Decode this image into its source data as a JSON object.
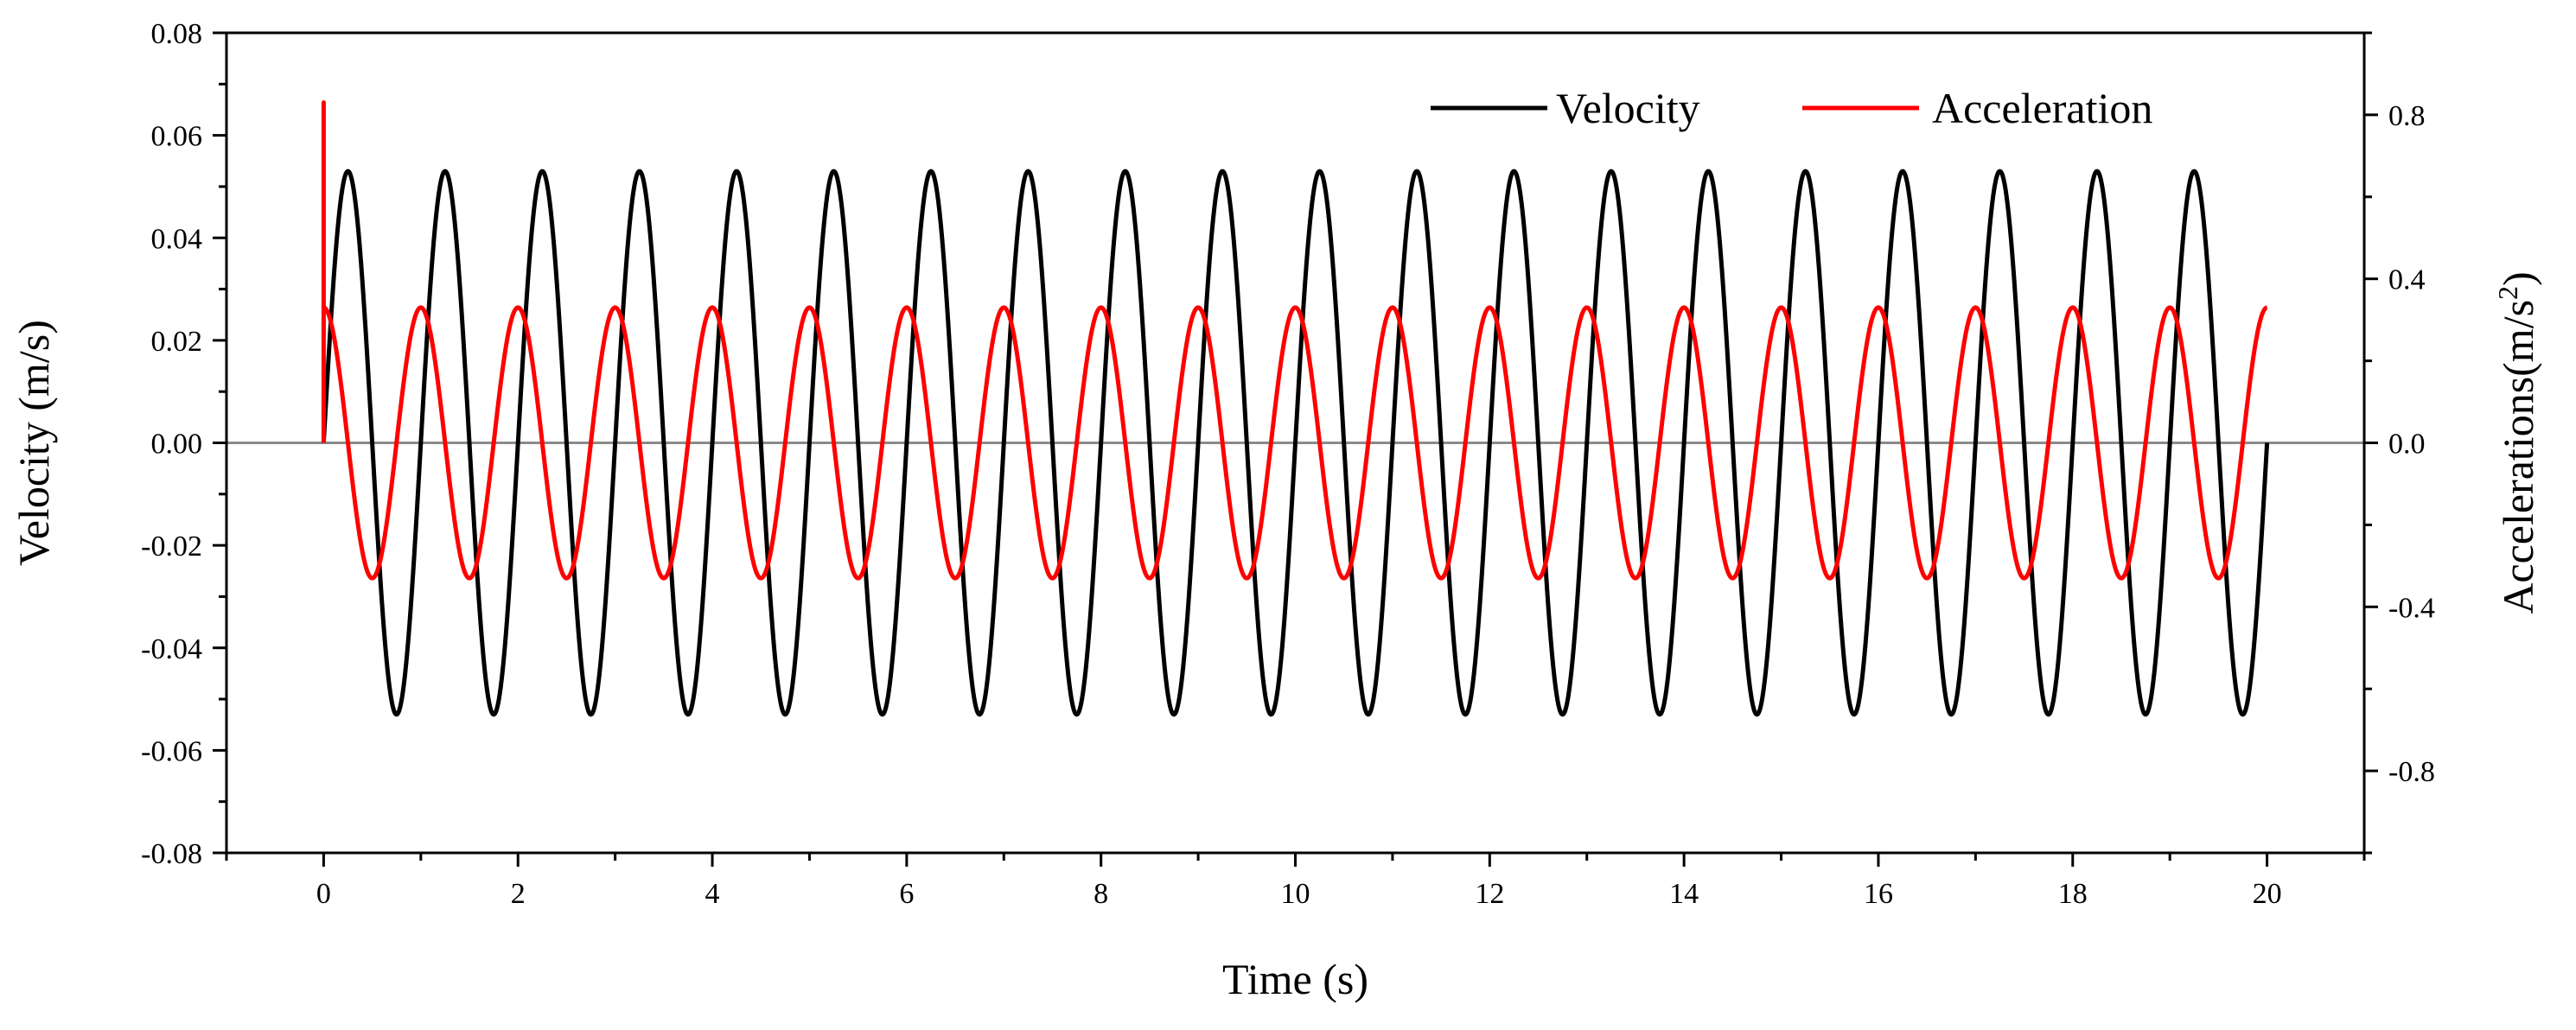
{
  "chart_data": {
    "type": "line",
    "x_axis": {
      "label": "Time (s)",
      "range": [
        -1,
        21
      ],
      "ticks": [
        0,
        2,
        4,
        6,
        8,
        10,
        12,
        14,
        16,
        18,
        20
      ],
      "tick_labels": [
        "0",
        "2",
        "4",
        "6",
        "8",
        "10",
        "12",
        "14",
        "16",
        "18",
        "20"
      ]
    },
    "y_left": {
      "label": "Velocity (m/s)",
      "range": [
        -0.08,
        0.08
      ],
      "ticks": [
        -0.08,
        -0.06,
        -0.04,
        -0.02,
        0.0,
        0.02,
        0.04,
        0.06,
        0.08
      ],
      "tick_labels": [
        "-0.08",
        "-0.06",
        "-0.04",
        "-0.02",
        "0.00",
        "0.02",
        "0.04",
        "0.06",
        "0.08"
      ]
    },
    "y_right": {
      "label_main": "Accelerations(m/s",
      "label_sup": "2",
      "label_end": ")",
      "range": [
        -1.0,
        1.0
      ],
      "ticks": [
        -0.8,
        -0.4,
        0.0,
        0.4,
        0.8
      ],
      "tick_labels": [
        "-0.8",
        "-0.4",
        "0.0",
        "0.4",
        "0.8"
      ]
    },
    "series": [
      {
        "name": "Velocity",
        "color": "#000000",
        "axis": "left",
        "model": "sine",
        "amplitude": 0.053,
        "frequency_hz": 1.0,
        "t_start": 0,
        "t_end": 20
      },
      {
        "name": "Acceleration",
        "color": "#ff0000",
        "axis": "right",
        "model": "cosine",
        "amplitude": 0.33,
        "frequency_hz": 1.0,
        "t_start": 0,
        "t_end": 20,
        "initial_spike": 0.83
      }
    ],
    "zero_line": true,
    "legend": {
      "position": "top-right",
      "items": [
        "Velocity",
        "Acceleration"
      ]
    }
  }
}
